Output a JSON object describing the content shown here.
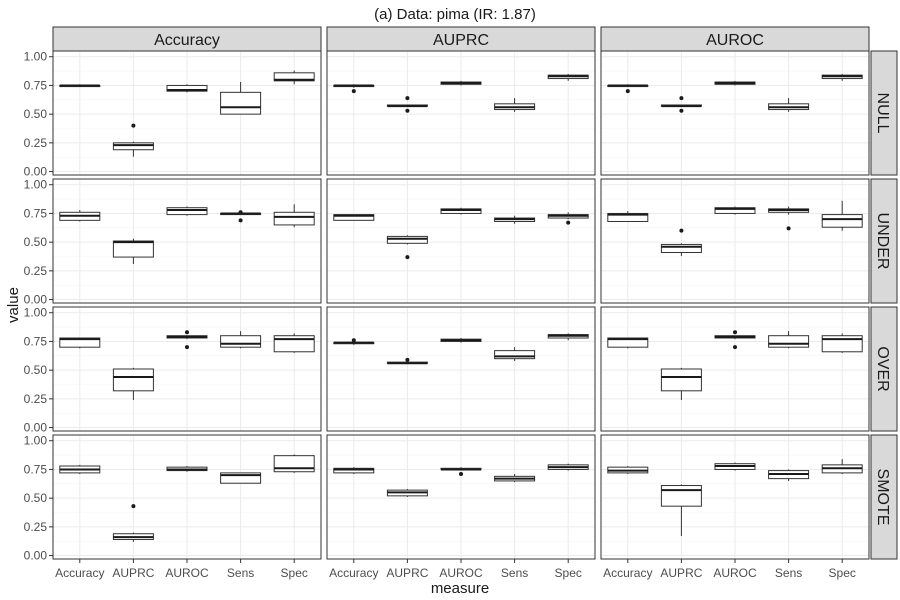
{
  "title": "(a) Data: pima (IR: 1.87)",
  "chart_data": {
    "type": "boxplot-facet-grid",
    "xlabel": "measure",
    "ylabel": "value",
    "ylim": [
      -0.03,
      1.05
    ],
    "y_ticks": [
      "0.00",
      "0.25",
      "0.50",
      "0.75",
      "1.00"
    ],
    "y_tick_values": [
      0,
      0.25,
      0.5,
      0.75,
      1.0
    ],
    "categories": [
      "Accuracy",
      "AUPRC",
      "AUROC",
      "Sens",
      "Spec"
    ],
    "columns": [
      "Accuracy",
      "AUPRC",
      "AUROC"
    ],
    "rows": [
      "NULL",
      "UNDER",
      "OVER",
      "SMOTE"
    ],
    "grid": true,
    "panels": [
      [
        [
          {
            "category": "Accuracy",
            "min": 0.74,
            "q1": 0.74,
            "median": 0.75,
            "q3": 0.75,
            "max": 0.76,
            "outliers": []
          },
          {
            "category": "AUPRC",
            "min": 0.13,
            "q1": 0.19,
            "median": 0.23,
            "q3": 0.25,
            "max": 0.26,
            "outliers": [
              0.4
            ]
          },
          {
            "category": "AUROC",
            "min": 0.69,
            "q1": 0.7,
            "median": 0.71,
            "q3": 0.75,
            "max": 0.76,
            "outliers": []
          },
          {
            "category": "Sens",
            "min": 0.5,
            "q1": 0.5,
            "median": 0.56,
            "q3": 0.69,
            "max": 0.78,
            "outliers": []
          },
          {
            "category": "Spec",
            "min": 0.76,
            "q1": 0.79,
            "median": 0.8,
            "q3": 0.86,
            "max": 0.88,
            "outliers": []
          }
        ],
        [
          {
            "category": "Accuracy",
            "min": 0.73,
            "q1": 0.74,
            "median": 0.75,
            "q3": 0.75,
            "max": 0.76,
            "outliers": [
              0.7
            ]
          },
          {
            "category": "AUPRC",
            "min": 0.57,
            "q1": 0.57,
            "median": 0.57,
            "q3": 0.58,
            "max": 0.58,
            "outliers": [
              0.53,
              0.64
            ]
          },
          {
            "category": "AUROC",
            "min": 0.75,
            "q1": 0.76,
            "median": 0.77,
            "q3": 0.78,
            "max": 0.79,
            "outliers": []
          },
          {
            "category": "Sens",
            "min": 0.52,
            "q1": 0.54,
            "median": 0.56,
            "q3": 0.59,
            "max": 0.64,
            "outliers": []
          },
          {
            "category": "Spec",
            "min": 0.79,
            "q1": 0.81,
            "median": 0.83,
            "q3": 0.84,
            "max": 0.85,
            "outliers": []
          }
        ],
        [
          {
            "category": "Accuracy",
            "min": 0.74,
            "q1": 0.74,
            "median": 0.75,
            "q3": 0.75,
            "max": 0.76,
            "outliers": [
              0.7
            ]
          },
          {
            "category": "AUPRC",
            "min": 0.57,
            "q1": 0.57,
            "median": 0.57,
            "q3": 0.58,
            "max": 0.58,
            "outliers": [
              0.53,
              0.64
            ]
          },
          {
            "category": "AUROC",
            "min": 0.75,
            "q1": 0.76,
            "median": 0.77,
            "q3": 0.78,
            "max": 0.79,
            "outliers": []
          },
          {
            "category": "Sens",
            "min": 0.52,
            "q1": 0.54,
            "median": 0.56,
            "q3": 0.59,
            "max": 0.64,
            "outliers": []
          },
          {
            "category": "Spec",
            "min": 0.79,
            "q1": 0.81,
            "median": 0.83,
            "q3": 0.84,
            "max": 0.85,
            "outliers": []
          }
        ]
      ],
      [
        [
          {
            "category": "Accuracy",
            "min": 0.68,
            "q1": 0.69,
            "median": 0.73,
            "q3": 0.76,
            "max": 0.78,
            "outliers": []
          },
          {
            "category": "AUPRC",
            "min": 0.31,
            "q1": 0.37,
            "median": 0.5,
            "q3": 0.51,
            "max": 0.53,
            "outliers": []
          },
          {
            "category": "AUROC",
            "min": 0.73,
            "q1": 0.74,
            "median": 0.78,
            "q3": 0.8,
            "max": 0.81,
            "outliers": []
          },
          {
            "category": "Sens",
            "min": 0.74,
            "q1": 0.74,
            "median": 0.75,
            "q3": 0.75,
            "max": 0.76,
            "outliers": [
              0.69,
              0.76
            ]
          },
          {
            "category": "Spec",
            "min": 0.63,
            "q1": 0.65,
            "median": 0.72,
            "q3": 0.76,
            "max": 0.83,
            "outliers": []
          }
        ],
        [
          {
            "category": "Accuracy",
            "min": 0.69,
            "q1": 0.69,
            "median": 0.73,
            "q3": 0.74,
            "max": 0.74,
            "outliers": []
          },
          {
            "category": "AUPRC",
            "min": 0.48,
            "q1": 0.49,
            "median": 0.53,
            "q3": 0.55,
            "max": 0.56,
            "outliers": [
              0.37
            ]
          },
          {
            "category": "AUROC",
            "min": 0.74,
            "q1": 0.75,
            "median": 0.78,
            "q3": 0.79,
            "max": 0.8,
            "outliers": []
          },
          {
            "category": "Sens",
            "min": 0.66,
            "q1": 0.68,
            "median": 0.7,
            "q3": 0.71,
            "max": 0.73,
            "outliers": []
          },
          {
            "category": "Spec",
            "min": 0.7,
            "q1": 0.71,
            "median": 0.73,
            "q3": 0.74,
            "max": 0.76,
            "outliers": [
              0.67
            ]
          }
        ],
        [
          {
            "category": "Accuracy",
            "min": 0.68,
            "q1": 0.68,
            "median": 0.74,
            "q3": 0.75,
            "max": 0.77,
            "outliers": []
          },
          {
            "category": "AUPRC",
            "min": 0.38,
            "q1": 0.41,
            "median": 0.46,
            "q3": 0.48,
            "max": 0.49,
            "outliers": [
              0.6
            ]
          },
          {
            "category": "AUROC",
            "min": 0.74,
            "q1": 0.75,
            "median": 0.79,
            "q3": 0.8,
            "max": 0.81,
            "outliers": []
          },
          {
            "category": "Sens",
            "min": 0.74,
            "q1": 0.76,
            "median": 0.78,
            "q3": 0.79,
            "max": 0.81,
            "outliers": [
              0.62
            ]
          },
          {
            "category": "Spec",
            "min": 0.6,
            "q1": 0.63,
            "median": 0.7,
            "q3": 0.74,
            "max": 0.86,
            "outliers": []
          }
        ]
      ],
      [
        [
          {
            "category": "Accuracy",
            "min": 0.69,
            "q1": 0.7,
            "median": 0.77,
            "q3": 0.78,
            "max": 0.78,
            "outliers": []
          },
          {
            "category": "AUPRC",
            "min": 0.24,
            "q1": 0.32,
            "median": 0.44,
            "q3": 0.51,
            "max": 0.52,
            "outliers": []
          },
          {
            "category": "AUROC",
            "min": 0.77,
            "q1": 0.78,
            "median": 0.79,
            "q3": 0.8,
            "max": 0.8,
            "outliers": [
              0.7,
              0.83
            ]
          },
          {
            "category": "Sens",
            "min": 0.69,
            "q1": 0.7,
            "median": 0.73,
            "q3": 0.8,
            "max": 0.84,
            "outliers": []
          },
          {
            "category": "Spec",
            "min": 0.65,
            "q1": 0.66,
            "median": 0.77,
            "q3": 0.8,
            "max": 0.82,
            "outliers": []
          }
        ],
        [
          {
            "category": "Accuracy",
            "min": 0.72,
            "q1": 0.73,
            "median": 0.74,
            "q3": 0.74,
            "max": 0.75,
            "outliers": [
              0.76
            ]
          },
          {
            "category": "AUPRC",
            "min": 0.56,
            "q1": 0.56,
            "median": 0.56,
            "q3": 0.57,
            "max": 0.57,
            "outliers": [
              0.59
            ]
          },
          {
            "category": "AUROC",
            "min": 0.74,
            "q1": 0.75,
            "median": 0.76,
            "q3": 0.77,
            "max": 0.78,
            "outliers": []
          },
          {
            "category": "Sens",
            "min": 0.58,
            "q1": 0.6,
            "median": 0.62,
            "q3": 0.67,
            "max": 0.7,
            "outliers": []
          },
          {
            "category": "Spec",
            "min": 0.76,
            "q1": 0.78,
            "median": 0.8,
            "q3": 0.81,
            "max": 0.82,
            "outliers": []
          }
        ],
        [
          {
            "category": "Accuracy",
            "min": 0.69,
            "q1": 0.7,
            "median": 0.77,
            "q3": 0.78,
            "max": 0.78,
            "outliers": []
          },
          {
            "category": "AUPRC",
            "min": 0.24,
            "q1": 0.32,
            "median": 0.44,
            "q3": 0.51,
            "max": 0.52,
            "outliers": []
          },
          {
            "category": "AUROC",
            "min": 0.77,
            "q1": 0.78,
            "median": 0.79,
            "q3": 0.8,
            "max": 0.8,
            "outliers": [
              0.7,
              0.83
            ]
          },
          {
            "category": "Sens",
            "min": 0.69,
            "q1": 0.7,
            "median": 0.73,
            "q3": 0.8,
            "max": 0.84,
            "outliers": []
          },
          {
            "category": "Spec",
            "min": 0.65,
            "q1": 0.66,
            "median": 0.77,
            "q3": 0.8,
            "max": 0.82,
            "outliers": []
          }
        ]
      ],
      [
        [
          {
            "category": "Accuracy",
            "min": 0.71,
            "q1": 0.72,
            "median": 0.75,
            "q3": 0.78,
            "max": 0.79,
            "outliers": []
          },
          {
            "category": "AUPRC",
            "min": 0.12,
            "q1": 0.14,
            "median": 0.16,
            "q3": 0.19,
            "max": 0.2,
            "outliers": [
              0.43
            ]
          },
          {
            "category": "AUROC",
            "min": 0.73,
            "q1": 0.74,
            "median": 0.75,
            "q3": 0.77,
            "max": 0.78,
            "outliers": []
          },
          {
            "category": "Sens",
            "min": 0.63,
            "q1": 0.63,
            "median": 0.7,
            "q3": 0.72,
            "max": 0.72,
            "outliers": []
          },
          {
            "category": "Spec",
            "min": 0.72,
            "q1": 0.73,
            "median": 0.76,
            "q3": 0.87,
            "max": 0.88,
            "outliers": []
          }
        ],
        [
          {
            "category": "Accuracy",
            "min": 0.71,
            "q1": 0.72,
            "median": 0.75,
            "q3": 0.76,
            "max": 0.77,
            "outliers": []
          },
          {
            "category": "AUPRC",
            "min": 0.51,
            "q1": 0.52,
            "median": 0.55,
            "q3": 0.57,
            "max": 0.58,
            "outliers": []
          },
          {
            "category": "AUROC",
            "min": 0.74,
            "q1": 0.75,
            "median": 0.75,
            "q3": 0.76,
            "max": 0.77,
            "outliers": [
              0.71
            ]
          },
          {
            "category": "Sens",
            "min": 0.64,
            "q1": 0.65,
            "median": 0.67,
            "q3": 0.69,
            "max": 0.71,
            "outliers": []
          },
          {
            "category": "Spec",
            "min": 0.74,
            "q1": 0.75,
            "median": 0.77,
            "q3": 0.79,
            "max": 0.8,
            "outliers": []
          }
        ],
        [
          {
            "category": "Accuracy",
            "min": 0.71,
            "q1": 0.72,
            "median": 0.74,
            "q3": 0.77,
            "max": 0.78,
            "outliers": []
          },
          {
            "category": "AUPRC",
            "min": 0.17,
            "q1": 0.43,
            "median": 0.57,
            "q3": 0.61,
            "max": 0.62,
            "outliers": []
          },
          {
            "category": "AUROC",
            "min": 0.74,
            "q1": 0.75,
            "median": 0.78,
            "q3": 0.8,
            "max": 0.81,
            "outliers": []
          },
          {
            "category": "Sens",
            "min": 0.65,
            "q1": 0.67,
            "median": 0.71,
            "q3": 0.74,
            "max": 0.75,
            "outliers": []
          },
          {
            "category": "Spec",
            "min": 0.71,
            "q1": 0.72,
            "median": 0.76,
            "q3": 0.79,
            "max": 0.84,
            "outliers": []
          }
        ]
      ]
    ]
  }
}
